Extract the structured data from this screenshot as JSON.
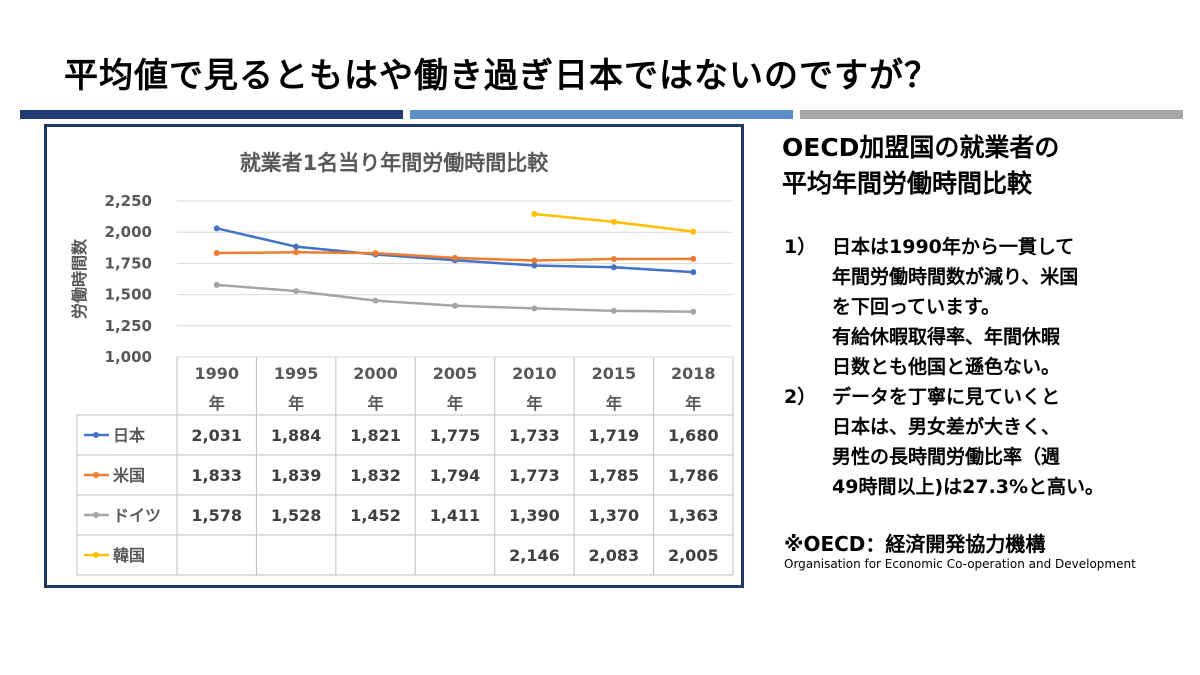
{
  "slide": {
    "title": "平均値で見るともはや働き過ぎ日本ではないのですが？",
    "accent_colors": [
      "#1f3d73",
      "#5b8fc7",
      "#a6a6a6"
    ]
  },
  "chart_data": {
    "type": "line",
    "title": "就業者1名当り年間労働時間比較",
    "ylabel": "労働時間数",
    "xlabel": "",
    "ylim": [
      1000,
      2250
    ],
    "yticks": [
      1000,
      1250,
      1500,
      1750,
      2000,
      2250
    ],
    "ytick_labels": [
      "1,000",
      "1,250",
      "1,500",
      "1,750",
      "2,000",
      "2,250"
    ],
    "categories": [
      "1990",
      "1995",
      "2000",
      "2005",
      "2010",
      "2015",
      "2018"
    ],
    "category_suffix": "年",
    "grid": true,
    "legend": "data-table",
    "series": [
      {
        "name": "日本",
        "color": "#4472c4",
        "values": [
          2031,
          1884,
          1821,
          1775,
          1733,
          1719,
          1680
        ],
        "labels": [
          "2,031",
          "1,884",
          "1,821",
          "1,775",
          "1,733",
          "1,719",
          "1,680"
        ]
      },
      {
        "name": "米国",
        "color": "#ed7d31",
        "values": [
          1833,
          1839,
          1832,
          1794,
          1773,
          1785,
          1786
        ],
        "labels": [
          "1,833",
          "1,839",
          "1,832",
          "1,794",
          "1,773",
          "1,785",
          "1,786"
        ]
      },
      {
        "name": "ドイツ",
        "color": "#a5a5a5",
        "values": [
          1578,
          1528,
          1452,
          1411,
          1390,
          1370,
          1363
        ],
        "labels": [
          "1,578",
          "1,528",
          "1,452",
          "1,411",
          "1,390",
          "1,370",
          "1,363"
        ]
      },
      {
        "name": "韓国",
        "color": "#ffc000",
        "values": [
          null,
          null,
          null,
          null,
          2146,
          2083,
          2005
        ],
        "labels": [
          "",
          "",
          "",
          "",
          "2,146",
          "2,083",
          "2,005"
        ]
      }
    ]
  },
  "side": {
    "heading_lines": [
      "OECD加盟国の就業者の",
      "平均年間労働時間比較"
    ],
    "notes": [
      {
        "num": "1）",
        "lines": [
          "日本は1990年から一貫して",
          "年間労働時間数が減り、米国",
          "を下回っています。",
          "有給休暇取得率、年間休暇",
          "日数とも他国と遜色ない。"
        ]
      },
      {
        "num": "2）",
        "lines": [
          "データを丁寧に見ていくと",
          "日本は、男女差が大きく、",
          "男性の長時間労働比率（週",
          "49時間以上)は27.3%と高い。"
        ]
      }
    ],
    "oecd_abbr": "※OECD：経済開発協力機構",
    "oecd_full": "Organisation for Economic Co-operation and Development"
  }
}
